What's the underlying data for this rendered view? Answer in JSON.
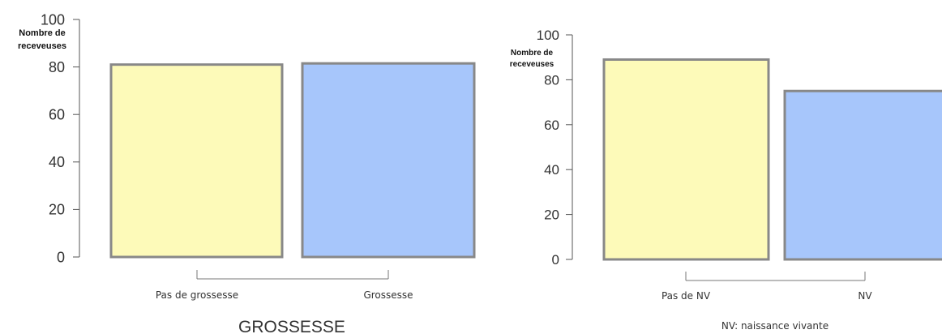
{
  "chart_data": [
    {
      "type": "bar",
      "categories": [
        "Pas de grossesse",
        "Grossesse"
      ],
      "values": [
        81,
        81.5
      ],
      "ylabel_lines": [
        "Nombre de",
        "receveuses"
      ],
      "xlabel": "GROSSESSE",
      "ylim": [
        0,
        100
      ],
      "yticks": [
        0,
        20,
        40,
        60,
        80,
        100
      ],
      "grid": false,
      "legend": "none",
      "colors": [
        "#fdfab9",
        "#a7c6fb"
      ],
      "edge_color": "#888888"
    },
    {
      "type": "bar",
      "categories": [
        "Pas de NV",
        "NV"
      ],
      "values": [
        89,
        75
      ],
      "ylabel_lines": [
        "Nombre de",
        "receveuses"
      ],
      "note": "NV: naissance vivante",
      "ylim": [
        0,
        100
      ],
      "yticks": [
        0,
        20,
        40,
        60,
        80,
        100
      ],
      "grid": false,
      "legend": "none",
      "colors": [
        "#fdfab9",
        "#a7c6fb"
      ],
      "edge_color": "#888888"
    }
  ]
}
